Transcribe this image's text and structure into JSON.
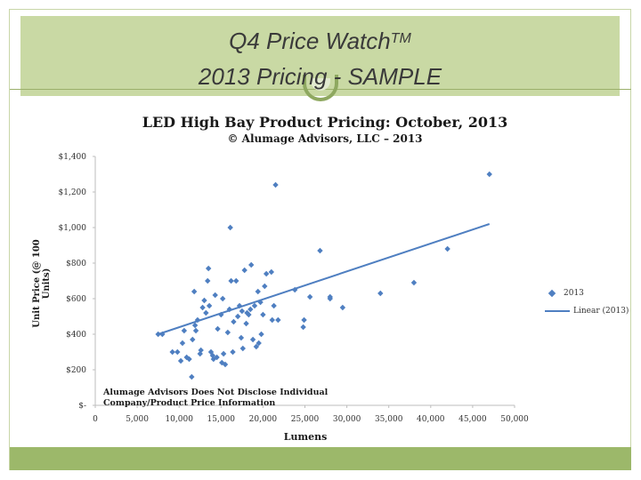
{
  "slide": {
    "title_line1": "Q4 Price Watch",
    "title_tm": "TM",
    "title_line2": "2013 Pricing - SAMPLE",
    "header_color": "#c9d9a4",
    "footer_color": "#9cb86a"
  },
  "chart_data": {
    "type": "scatter",
    "title": "LED High Bay Product Pricing: October, 2013",
    "subtitle": "© Alumage Advisors, LLC – 2013",
    "xlabel": "Lumens",
    "ylabel": "Unit Price (@ 100 Units)",
    "xlim": [
      0,
      50000
    ],
    "ylim": [
      0,
      1400
    ],
    "x_ticks": [
      "0",
      "5,000",
      "10,000",
      "15,000",
      "20,000",
      "25,000",
      "30,000",
      "35,000",
      "40,000",
      "45,000",
      "50,000"
    ],
    "y_ticks": [
      "$-",
      "$200",
      "$400",
      "$600",
      "$800",
      "$1,000",
      "$1,200",
      "$1,400"
    ],
    "annotation_line1": "Alumage Advisors Does Not Disclose Individual",
    "annotation_line2": "Company/Product Price Information",
    "series_color": "#4f7fc1",
    "series": [
      {
        "name": "2013",
        "points": [
          [
            7500,
            400
          ],
          [
            8000,
            400
          ],
          [
            9200,
            300
          ],
          [
            9800,
            300
          ],
          [
            10200,
            250
          ],
          [
            10400,
            350
          ],
          [
            10600,
            420
          ],
          [
            10900,
            270
          ],
          [
            11200,
            260
          ],
          [
            11500,
            160
          ],
          [
            11600,
            370
          ],
          [
            11800,
            640
          ],
          [
            11900,
            450
          ],
          [
            12000,
            420
          ],
          [
            12200,
            480
          ],
          [
            12500,
            290
          ],
          [
            12600,
            310
          ],
          [
            12800,
            550
          ],
          [
            13000,
            590
          ],
          [
            13200,
            520
          ],
          [
            13400,
            700
          ],
          [
            13500,
            770
          ],
          [
            13600,
            560
          ],
          [
            13800,
            300
          ],
          [
            14000,
            280
          ],
          [
            14100,
            260
          ],
          [
            14300,
            620
          ],
          [
            14500,
            270
          ],
          [
            14600,
            430
          ],
          [
            15000,
            510
          ],
          [
            15100,
            240
          ],
          [
            15200,
            600
          ],
          [
            15300,
            290
          ],
          [
            15500,
            230
          ],
          [
            15800,
            410
          ],
          [
            16000,
            540
          ],
          [
            16100,
            1000
          ],
          [
            16200,
            700
          ],
          [
            16400,
            300
          ],
          [
            16500,
            470
          ],
          [
            16800,
            700
          ],
          [
            17000,
            500
          ],
          [
            17200,
            560
          ],
          [
            17400,
            380
          ],
          [
            17500,
            530
          ],
          [
            17600,
            320
          ],
          [
            17800,
            760
          ],
          [
            18000,
            460
          ],
          [
            18100,
            520
          ],
          [
            18300,
            510
          ],
          [
            18500,
            540
          ],
          [
            18600,
            790
          ],
          [
            18800,
            370
          ],
          [
            19000,
            560
          ],
          [
            19200,
            330
          ],
          [
            19400,
            640
          ],
          [
            19500,
            350
          ],
          [
            19700,
            580
          ],
          [
            19800,
            400
          ],
          [
            20000,
            510
          ],
          [
            20200,
            670
          ],
          [
            20400,
            740
          ],
          [
            21000,
            750
          ],
          [
            21100,
            480
          ],
          [
            21300,
            560
          ],
          [
            21500,
            1240
          ],
          [
            21800,
            480
          ],
          [
            23800,
            650
          ],
          [
            24800,
            440
          ],
          [
            24900,
            480
          ],
          [
            25600,
            610
          ],
          [
            26800,
            870
          ],
          [
            28000,
            610
          ],
          [
            28000,
            600
          ],
          [
            29500,
            550
          ],
          [
            34000,
            630
          ],
          [
            38000,
            690
          ],
          [
            42000,
            880
          ],
          [
            47000,
            1300
          ]
        ]
      }
    ],
    "trendline": {
      "name": "Linear (2013)",
      "x": [
        7500,
        47000
      ],
      "y": [
        400,
        1020
      ]
    },
    "legend": [
      "2013",
      "Linear (2013)"
    ]
  }
}
